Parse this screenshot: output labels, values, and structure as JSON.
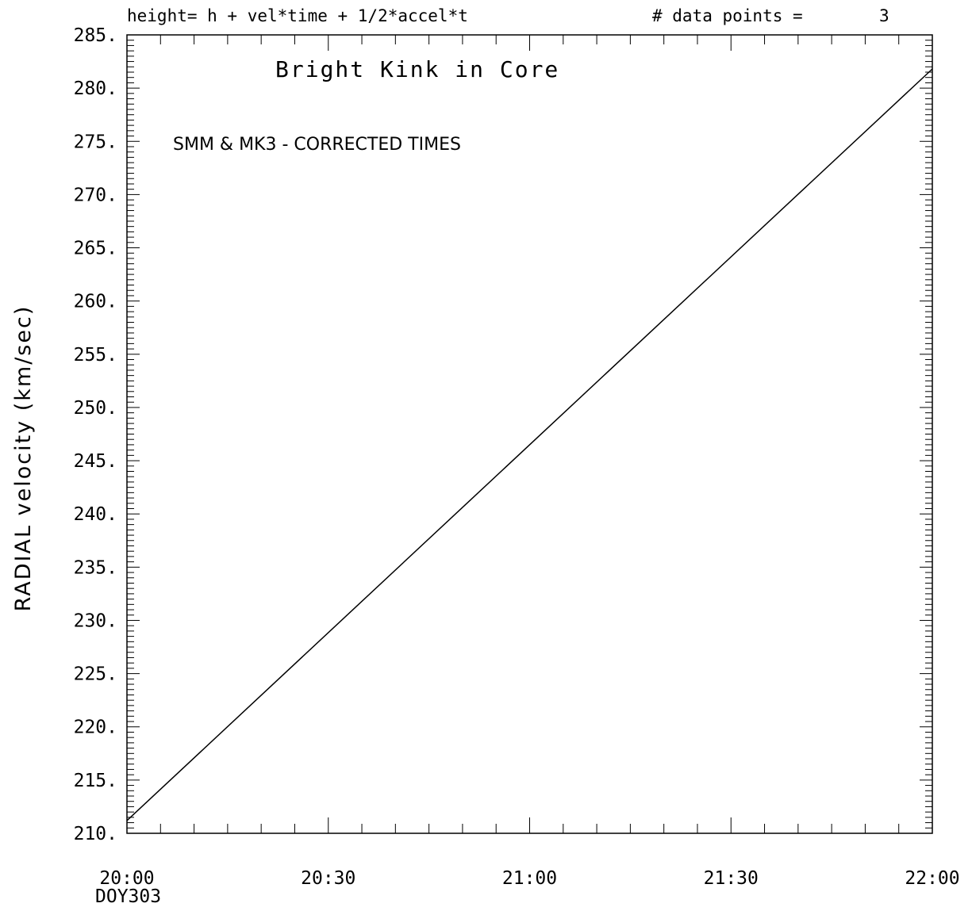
{
  "header": {
    "formula": "height= h + vel*time + 1/2*accel*t",
    "points_label": "# data points =",
    "points_value": "3"
  },
  "chart_data": {
    "type": "line",
    "title": "Bright Kink in Core",
    "subtitle": "SMM & MK3 - CORRECTED TIMES",
    "ylabel": "RADIAL velocity (km/sec)",
    "xlabel": "",
    "x_date_label": "DOY303",
    "xlim": [
      "20:00",
      "22:00"
    ],
    "ylim": [
      210,
      285
    ],
    "x_tick_labels": [
      "20:00",
      "20:30",
      "21:00",
      "21:30",
      "22:00"
    ],
    "y_tick_labels": [
      "285.",
      "280.",
      "275.",
      "270.",
      "265.",
      "260.",
      "255.",
      "250.",
      "245.",
      "240.",
      "235.",
      "230.",
      "225.",
      "220.",
      "215.",
      "210."
    ],
    "series": [
      {
        "x": [
          "20:00",
          "22:00"
        ],
        "y": [
          211.2,
          281.8
        ]
      }
    ],
    "grid": false,
    "line_color": "#000000"
  }
}
